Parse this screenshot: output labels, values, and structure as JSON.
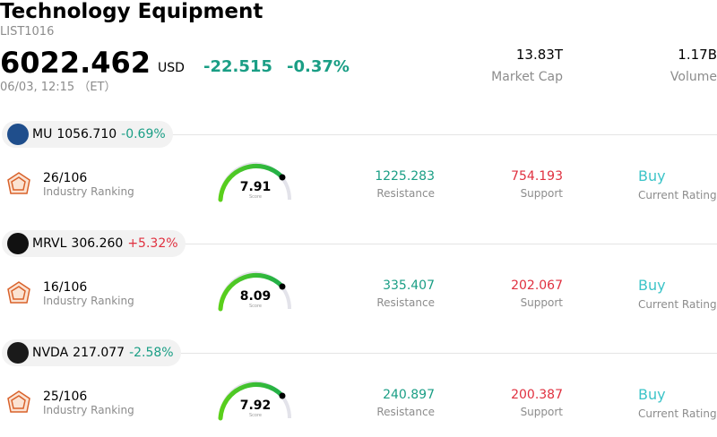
{
  "header": {
    "title": "Technology Equipment",
    "code": "LIST1016",
    "price": "6022.462",
    "currency": "USD",
    "change": "-22.515",
    "change_pct": "-0.37%",
    "change_color": "#1a9e85",
    "time": "06/03, 12:15 （ET）",
    "stats": [
      {
        "value": "13.83T",
        "label": "Market Cap"
      },
      {
        "value": "1.17B",
        "label": "Volume"
      }
    ]
  },
  "stocks": [
    {
      "ticker": "MU",
      "price": "1056.710",
      "change": "-0.69%",
      "change_color": "#1a9e85",
      "logo_color": "#1f4e8c",
      "ranking": "26/106",
      "ranking_label": "Industry Ranking",
      "score": "7.91",
      "score_label": "Score",
      "resistance": "1225.283",
      "resistance_label": "Resistance",
      "support": "754.193",
      "support_label": "Support",
      "rating": "Buy",
      "rating_label": "Current Rating"
    },
    {
      "ticker": "MRVL",
      "price": "306.260",
      "change": "+5.32%",
      "change_color": "#e0303f",
      "logo_color": "#111111",
      "ranking": "16/106",
      "ranking_label": "Industry Ranking",
      "score": "8.09",
      "score_label": "Score",
      "resistance": "335.407",
      "resistance_label": "Resistance",
      "support": "202.067",
      "support_label": "Support",
      "rating": "Buy",
      "rating_label": "Current Rating"
    },
    {
      "ticker": "NVDA",
      "price": "217.077",
      "change": "-2.58%",
      "change_color": "#1a9e85",
      "logo_color": "#1a1a1a",
      "ranking": "25/106",
      "ranking_label": "Industry Ranking",
      "score": "7.92",
      "score_label": "Score",
      "resistance": "240.897",
      "resistance_label": "Resistance",
      "support": "200.387",
      "support_label": "Support",
      "rating": "Buy",
      "rating_label": "Current Rating"
    }
  ]
}
